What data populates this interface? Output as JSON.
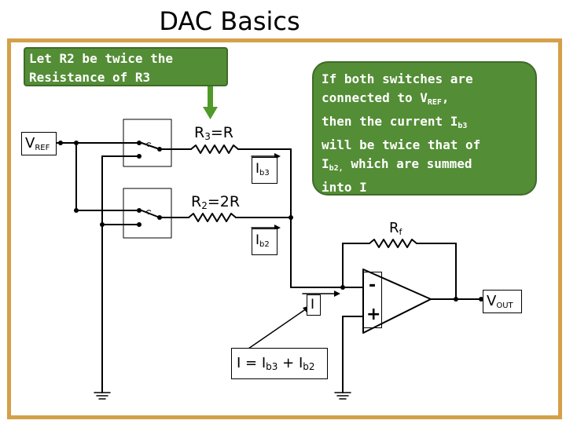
{
  "title": "DAC Basics",
  "callout_r2": {
    "line1": "Let R2 be twice the",
    "line2": "Resistance of R3"
  },
  "callout_info": {
    "l1": "If both switches are",
    "l2_a": "connected to V",
    "l2_sub": "REF",
    "l2_b": ",",
    "l3_a": "then the current I",
    "l3_sub": "b3",
    "l4": "will be twice that of",
    "l5_a": "I",
    "l5_sub": "b2,",
    "l5_b": " which are summed",
    "l6": "into I"
  },
  "labels": {
    "vref_main": "V",
    "vref_sub": "REF",
    "r3_main": "R",
    "r3_sub": "3",
    "r3_value": "=R",
    "r2_main": "R",
    "r2_sub": "2",
    "r2_value": "=2R",
    "rf_main": "R",
    "rf_sub": "f",
    "ib3_main": "I",
    "ib3_sub": "b3",
    "ib2_main": "I",
    "ib2_sub": "b2",
    "i_label": "I",
    "minus": "-",
    "plus": "+",
    "vout_main": "V",
    "vout_sub": "OUT",
    "eq_a": "I = I",
    "eq_sub1": "b3",
    "eq_b": " + I",
    "eq_sub2": "b2"
  },
  "colors": {
    "frame": "#d4a049",
    "callout_fill": "#538d35",
    "callout_border": "#3e6b28",
    "arrow": "#4f9a2a"
  }
}
